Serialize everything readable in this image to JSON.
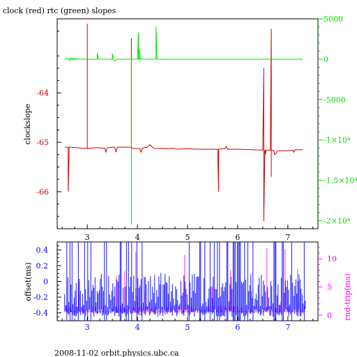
{
  "title": "clock (red) rtc (green) slopes",
  "footer": "2008-11-02 orbit.physics.ubc.ca",
  "colors": {
    "clock": "#cc0000",
    "rtc": "#00dd00",
    "offset": "#0000ff",
    "rtt": "#ff00ff",
    "frame": "#000000"
  },
  "chart_data": [
    {
      "type": "line",
      "title": "clock (red) rtc (green) slopes",
      "xlabel": "",
      "ylabel": "clockslope",
      "xlim": [
        2.4,
        7.6
      ],
      "ylim": [
        -66.75,
        -62.5
      ],
      "y2lim": [
        -21000,
        5000
      ],
      "x_ticks": [
        "3",
        "4",
        "5",
        "6",
        "7"
      ],
      "y_ticks": [
        "-64",
        "-65",
        "-66"
      ],
      "y2_ticks": [
        "5000",
        "0",
        "-5000",
        "-1×10⁴",
        "-1.5×10⁴",
        "-2×10⁴"
      ],
      "series": [
        {
          "name": "clock",
          "axis": "left",
          "x": [
            2.55,
            2.6,
            2.62,
            2.62,
            2.64,
            2.7,
            2.9,
            3.0,
            3.0,
            3.0,
            3.02,
            3.2,
            3.35,
            3.37,
            3.4,
            3.5,
            3.55,
            3.57,
            3.6,
            3.7,
            3.8,
            3.88,
            3.88,
            3.88,
            3.9,
            4.0,
            4.05,
            4.07,
            4.1,
            4.2,
            4.25,
            4.3,
            4.35,
            4.5,
            4.6,
            4.7,
            4.8,
            5.0,
            5.2,
            5.5,
            5.6,
            5.62,
            5.62,
            5.64,
            5.7,
            5.75,
            5.77,
            5.8,
            6.0,
            6.3,
            6.5,
            6.52,
            6.52,
            6.54,
            6.55,
            6.55,
            6.57,
            6.6,
            6.65,
            6.67,
            6.67,
            6.67,
            6.69,
            6.72,
            6.74,
            6.8,
            7.0,
            7.1,
            7.12,
            7.14,
            7.3
          ],
          "y": [
            -65.1,
            -65.1,
            -65.1,
            -66.0,
            -65.1,
            -65.1,
            -65.12,
            -65.12,
            -62.6,
            -65.12,
            -65.12,
            -65.11,
            -65.12,
            -65.2,
            -65.11,
            -65.1,
            -65.1,
            -65.2,
            -65.1,
            -65.1,
            -65.1,
            -65.1,
            -62.9,
            -65.1,
            -65.12,
            -65.13,
            -65.13,
            -65.2,
            -65.12,
            -65.1,
            -65.05,
            -65.1,
            -65.13,
            -65.12,
            -65.13,
            -65.12,
            -65.14,
            -65.13,
            -65.14,
            -65.14,
            -65.14,
            -66.0,
            -65.14,
            -65.14,
            -65.13,
            -65.13,
            -65.08,
            -65.14,
            -65.14,
            -65.15,
            -65.16,
            -63.5,
            -66.6,
            -65.16,
            -65.16,
            -65.25,
            -65.16,
            -65.16,
            -65.16,
            -62.7,
            -65.7,
            -65.16,
            -65.16,
            -65.17,
            -65.25,
            -65.17,
            -65.17,
            -65.16,
            -65.2,
            -65.15,
            -65.15
          ]
        },
        {
          "name": "rtc",
          "axis": "right",
          "x": [
            2.55,
            2.62,
            2.64,
            2.66,
            2.68,
            2.7,
            2.72,
            2.74,
            2.76,
            2.78,
            2.8,
            3.0,
            3.2,
            3.2,
            3.22,
            3.5,
            3.5,
            3.52,
            3.55,
            3.6,
            3.7,
            3.88,
            3.88,
            3.88,
            3.9,
            4.0,
            4.02,
            4.02,
            4.04,
            4.04,
            4.06,
            4.2,
            4.37,
            4.37,
            4.39,
            4.6,
            4.8,
            5.0,
            5.2,
            5.4,
            5.5,
            5.6,
            5.7,
            5.8,
            5.9,
            6.0,
            6.1,
            6.2,
            6.3,
            6.4,
            6.5,
            6.6,
            6.7,
            6.8,
            6.9,
            7.0,
            7.1,
            7.2,
            7.3
          ],
          "y": [
            0,
            100,
            -150,
            120,
            -100,
            150,
            -120,
            100,
            -80,
            120,
            0,
            0,
            0,
            800,
            0,
            0,
            700,
            0,
            -200,
            0,
            0,
            0,
            -20500,
            0,
            0,
            0,
            3300,
            0,
            0,
            1300,
            0,
            0,
            0,
            4000,
            0,
            0,
            0,
            0,
            0,
            0,
            0,
            0,
            0,
            0,
            0,
            0,
            0,
            0,
            0,
            0,
            0,
            0,
            0,
            0,
            0,
            0,
            0,
            0,
            0
          ]
        }
      ]
    },
    {
      "type": "line",
      "xlabel": "",
      "ylabel": "offset(ms)",
      "y2label": "rnd-trip(ms)",
      "xlim": [
        2.4,
        7.6
      ],
      "ylim": [
        -0.5,
        0.5
      ],
      "y2lim": [
        -1,
        13
      ],
      "x_ticks": [
        "3",
        "4",
        "5",
        "6",
        "7"
      ],
      "y_ticks": [
        "0.4",
        "0.2",
        "0",
        "-0.2",
        "-0.4"
      ],
      "y2_ticks": [
        "10",
        "5",
        "0"
      ],
      "series": [
        {
          "name": "offset",
          "axis": "left",
          "x": [
            2.55,
            7.35
          ],
          "y": [
            -0.45,
            0.35
          ]
        },
        {
          "name": "rnd-trip",
          "axis": "right",
          "x": [
            2.55,
            7.35
          ],
          "y": [
            0.5,
            12
          ]
        }
      ]
    }
  ]
}
